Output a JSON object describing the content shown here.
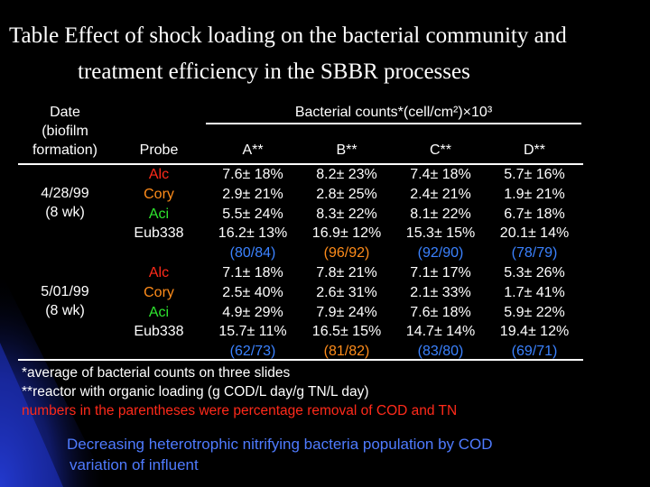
{
  "slide": {
    "title_line1": "Table  Effect of shock loading on the bacterial community and",
    "title_line2": "treatment efficiency in the SBBR processes",
    "colors": {
      "background": "#000000",
      "swoosh": "#1f33c8",
      "red": "#ff2a1a",
      "orange": "#ff8c1a",
      "green": "#2ee62e",
      "blue": "#3b82ff"
    }
  },
  "table": {
    "date_header": [
      "Date",
      "(biofilm",
      "formation)"
    ],
    "probe_header": "Probe",
    "counts_header": "Bacterial counts*(cell/cm²)×10³",
    "columns": [
      "A**",
      "B**",
      "C**",
      "D**"
    ],
    "groups": [
      {
        "date": [
          "4/28/99",
          "(8 wk)"
        ],
        "rows": [
          {
            "probe": "Alc",
            "color": "red",
            "values": [
              "7.6± 18%",
              "8.2± 23%",
              "7.4± 18%",
              "5.7± 16%"
            ]
          },
          {
            "probe": "Cory",
            "color": "orange",
            "values": [
              "2.9± 21%",
              "2.8± 25%",
              "2.4± 21%",
              "1.9± 21%"
            ]
          },
          {
            "probe": "Aci",
            "color": "green",
            "values": [
              "5.5± 24%",
              "8.3± 22%",
              "8.1± 22%",
              "6.7± 18%"
            ]
          },
          {
            "probe": "Eub338",
            "color": "white",
            "values": [
              "16.2± 13%",
              "16.9± 12%",
              "15.3± 15%",
              "20.1± 14%"
            ]
          }
        ],
        "removal": [
          {
            "text": "(80/84)",
            "color": "blue"
          },
          {
            "text": "(96/92)",
            "color": "orange"
          },
          {
            "text": "(92/90)",
            "color": "blue"
          },
          {
            "text": "(78/79)",
            "color": "blue"
          }
        ]
      },
      {
        "date": [
          "5/01/99",
          "(8 wk)"
        ],
        "rows": [
          {
            "probe": "Alc",
            "color": "red",
            "values": [
              "7.1± 18%",
              "7.8± 21%",
              "7.1± 17%",
              "5.3± 26%"
            ]
          },
          {
            "probe": "Cory",
            "color": "orange",
            "values": [
              "2.5± 40%",
              "2.6± 31%",
              "2.1± 33%",
              "1.7± 41%"
            ]
          },
          {
            "probe": "Aci",
            "color": "green",
            "values": [
              "4.9± 29%",
              "7.9± 24%",
              "7.6± 18%",
              "5.9± 22%"
            ]
          },
          {
            "probe": "Eub338",
            "color": "white",
            "values": [
              "15.7± 11%",
              "16.5± 15%",
              "14.7± 14%",
              "19.4± 12%"
            ]
          }
        ],
        "removal": [
          {
            "text": "(62/73)",
            "color": "blue"
          },
          {
            "text": "(81/82)",
            "color": "orange"
          },
          {
            "text": "(83/80)",
            "color": "blue"
          },
          {
            "text": "(69/71)",
            "color": "blue"
          }
        ]
      }
    ]
  },
  "footnotes": {
    "note1": "*average of bacterial counts on three slides",
    "note2": "**reactor with organic loading (g COD/L day/g TN/L day)",
    "note3": "numbers in the parentheses were percentage removal of COD and TN"
  },
  "conclusion": {
    "line1": "Decreasing heterotrophic nitrifying bacteria population  by COD",
    "line2": "variation of influent"
  }
}
